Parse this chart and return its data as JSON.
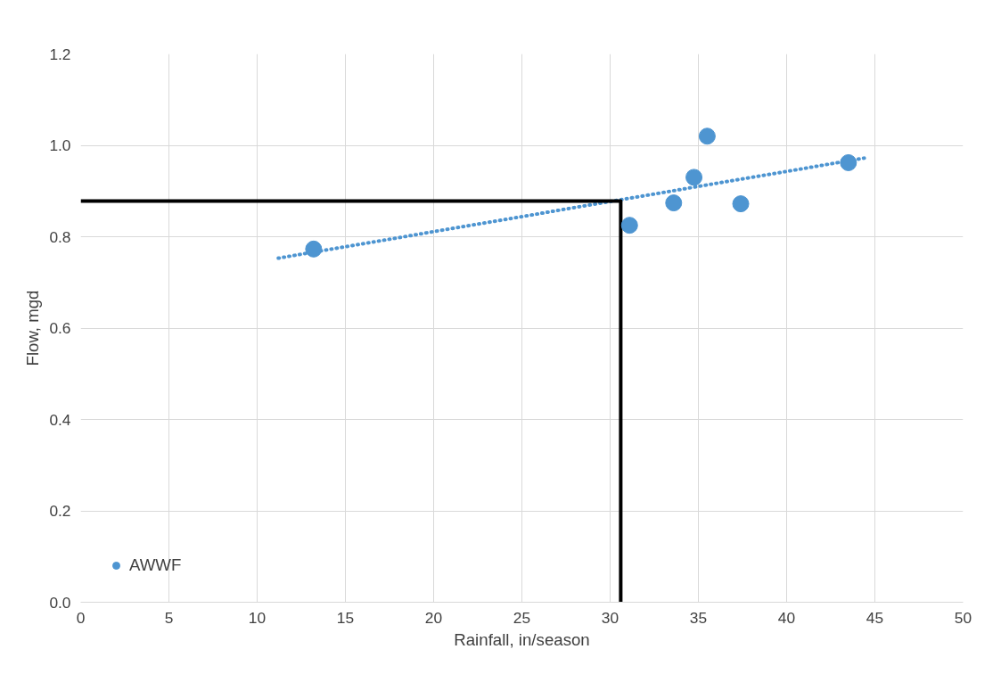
{
  "chart_data": {
    "type": "scatter",
    "xlabel": "Rainfall, in/season",
    "ylabel": "Flow, mgd",
    "xlim": [
      0,
      50
    ],
    "xticks": [
      0,
      5,
      10,
      15,
      20,
      25,
      30,
      35,
      40,
      45,
      50
    ],
    "ylim": [
      0,
      1.2
    ],
    "yticks": [
      {
        "value": 0,
        "label": "0.0"
      },
      {
        "value": 0.2,
        "label": "0.2"
      },
      {
        "value": 0.4,
        "label": "0.4"
      },
      {
        "value": 0.6,
        "label": "0.6"
      },
      {
        "value": 0.8,
        "label": "0.8"
      },
      {
        "value": 1.0,
        "label": "1.0"
      },
      {
        "value": 1.2,
        "label": "1.2"
      }
    ],
    "grid": true,
    "legend": "bottom left",
    "series": [
      {
        "name": "AWWF",
        "marker": "circle",
        "color": "#4e95d1",
        "x": [
          13.2,
          31.1,
          33.6,
          34.75,
          35.5,
          37.4,
          43.5
        ],
        "values": [
          0.773,
          0.825,
          0.874,
          0.93,
          1.02,
          0.872,
          0.962
        ]
      },
      {
        "type": "line",
        "line_style": "dotted",
        "color": "#4e95d1",
        "x": [
          11.2,
          44.4
        ],
        "values": [
          0.753,
          0.972
        ]
      },
      {
        "type": "line",
        "line_style": "solid",
        "color": "#000000",
        "x": [
          0,
          30.6,
          30.6
        ],
        "values": [
          0.878,
          0.878,
          0
        ]
      }
    ]
  }
}
